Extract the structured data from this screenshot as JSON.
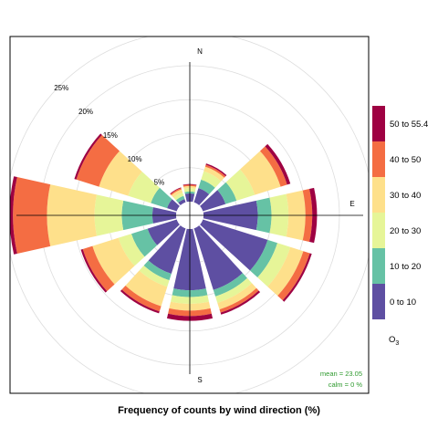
{
  "chart_data": {
    "type": "windrose",
    "title": "Frequency of counts by wind direction (%)",
    "compass_labels": [
      "N",
      "E",
      "S"
    ],
    "radial_ticks": [
      5,
      10,
      15,
      20,
      25
    ],
    "radial_tick_labels": [
      "5%",
      "10%",
      "15%",
      "20%",
      "25%"
    ],
    "rlim": [
      0,
      25
    ],
    "legend": {
      "title": "O",
      "title_subscript": "3",
      "bins": [
        "0 to 10",
        "10 to 20",
        "20 to 30",
        "30 to 40",
        "40 to 50",
        "50 to 55.4"
      ],
      "colors": [
        "#5E4FA2",
        "#66C2A5",
        "#E6F598",
        "#FEE08B",
        "#F46D43",
        "#9E0142"
      ]
    },
    "stats": {
      "mean_label": "mean =",
      "mean_value": "23.05",
      "calm_label": "calm =",
      "calm_value": "0 %"
    },
    "directions": [
      0,
      30,
      60,
      90,
      120,
      150,
      180,
      210,
      240,
      270,
      300,
      330
    ],
    "cumulative": [
      [
        1.2,
        1.5,
        2.0,
        2.3,
        2.5,
        2.6
      ],
      [
        2.2,
        3.5,
        4.8,
        5.5,
        5.8,
        6.0
      ],
      [
        3.5,
        5.2,
        8.0,
        12.0,
        13.0,
        13.5
      ],
      [
        8.0,
        10.0,
        12.5,
        15.0,
        16.0,
        16.7
      ],
      [
        10.0,
        11.5,
        13.5,
        15.5,
        16.5,
        16.8
      ],
      [
        9.5,
        10.5,
        11.5,
        12.5,
        13.0,
        13.3
      ],
      [
        9.0,
        10.0,
        11.0,
        12.0,
        12.8,
        13.5
      ],
      [
        7.0,
        8.0,
        9.0,
        12.0,
        12.8,
        13.1
      ],
      [
        4.5,
        7.0,
        9.0,
        13.0,
        14.5,
        14.8
      ],
      [
        3.5,
        8.0,
        12.0,
        19.0,
        24.0,
        24.5
      ],
      [
        1.5,
        4.0,
        7.5,
        12.0,
        15.5,
        15.8
      ],
      [
        0.5,
        1.0,
        1.5,
        2.0,
        2.2,
        2.3
      ]
    ]
  }
}
